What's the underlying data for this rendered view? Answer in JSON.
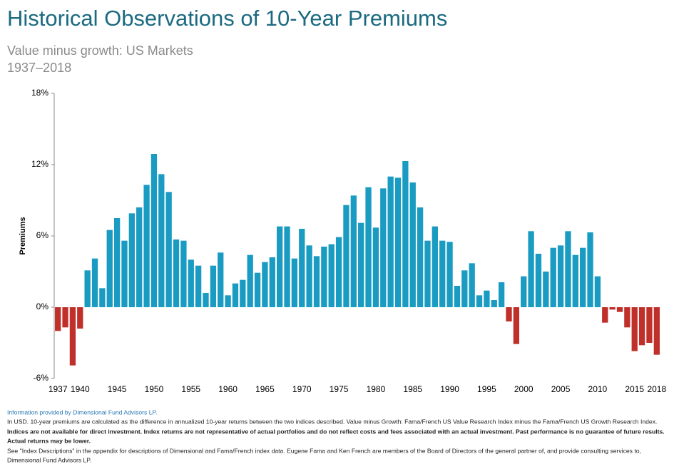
{
  "chart_data": {
    "type": "bar",
    "title": "Historical Observations of 10-Year Premiums",
    "subtitle": "Value minus growth: US Markets",
    "period": "1937–2018",
    "y_label": "Premiums",
    "categories": [
      "1937",
      null,
      null,
      "1940",
      null,
      null,
      null,
      null,
      "1945",
      null,
      null,
      null,
      null,
      "1950",
      null,
      null,
      null,
      null,
      "1955",
      null,
      null,
      null,
      null,
      "1960",
      null,
      null,
      null,
      null,
      "1965",
      null,
      null,
      null,
      null,
      "1970",
      null,
      null,
      null,
      null,
      "1975",
      null,
      null,
      null,
      null,
      "1980",
      null,
      null,
      null,
      null,
      "1985",
      null,
      null,
      null,
      null,
      "1990",
      null,
      null,
      null,
      null,
      "1995",
      null,
      null,
      null,
      null,
      "2000",
      null,
      null,
      null,
      null,
      "2005",
      null,
      null,
      null,
      null,
      "2010",
      null,
      null,
      null,
      null,
      "2015",
      null,
      null,
      "2018"
    ],
    "values": [
      -2.0,
      -1.7,
      -4.9,
      -1.8,
      3.1,
      4.1,
      1.6,
      6.5,
      7.5,
      5.6,
      7.9,
      8.4,
      10.3,
      12.9,
      11.2,
      9.7,
      5.7,
      5.6,
      4.0,
      3.5,
      1.2,
      3.5,
      4.6,
      1.0,
      2.0,
      2.3,
      4.4,
      2.9,
      3.8,
      4.2,
      6.8,
      6.8,
      4.1,
      6.6,
      5.2,
      4.3,
      5.1,
      5.3,
      5.9,
      8.6,
      9.4,
      7.1,
      10.1,
      6.7,
      10.0,
      11.0,
      10.9,
      12.3,
      10.5,
      8.4,
      5.6,
      6.8,
      5.6,
      5.5,
      1.8,
      3.1,
      3.7,
      1.0,
      1.4,
      0.6,
      2.1,
      -1.2,
      -3.1,
      2.6,
      6.4,
      4.5,
      3.0,
      5.0,
      5.2,
      6.4,
      4.4,
      5.0,
      6.3,
      2.6,
      -1.3,
      -0.2,
      -0.4,
      -1.7,
      -3.7,
      -3.2,
      -3.0,
      -4.0
    ],
    "positive_color": "#1a9bc2",
    "negative_color": "#c0302b",
    "ylim": [
      -6,
      18
    ],
    "yticks": [
      {
        "value": -6,
        "label": "-6%"
      },
      {
        "value": 0,
        "label": "0%"
      },
      {
        "value": 6,
        "label": "6%"
      },
      {
        "value": 12,
        "label": "12%"
      },
      {
        "value": 18,
        "label": "18%"
      }
    ],
    "grid": false
  },
  "footer": {
    "source": "Information provided by Dimensional Fund Advisors LP.",
    "notes": [
      "In USD. 10-year premiums are calculated as the difference in annualized 10-year returns between the two indices described. Value minus Growth: Fama/French US Value Research Index minus the Fama/French US Growth Research Index.",
      "Indices are not available for direct investment. Index returns are not representative of actual portfolios and do not reflect costs and fees associated with an actual investment. Past performance is no guarantee of future results.",
      "Actual returns may be lower.",
      "See \"Index Descriptions\" in the appendix for descriptions of Dimensional and Fama/French index data. Eugene Fama and Ken French are members of the Board of Directors of the general partner of, and provide consulting services to,",
      "Dimensional Fund Advisors LP."
    ]
  }
}
